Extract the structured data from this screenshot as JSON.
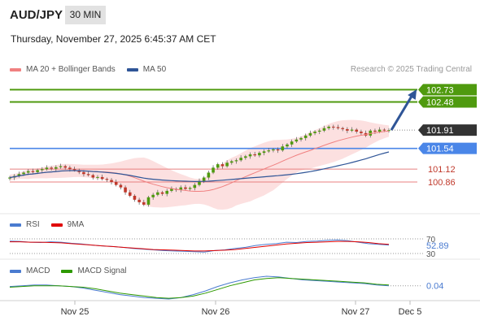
{
  "header": {
    "symbol": "AUD/JPY",
    "timeframe": "30 MIN",
    "datetime": "Thursday, November 27, 2025 6:45:37 AM CET",
    "credit": "Research © 2025 Trading Central"
  },
  "legends": {
    "main": [
      {
        "label": "MA 20 + Bollinger Bands",
        "color": "#f08080"
      },
      {
        "label": "MA 50",
        "color": "#2f5597"
      }
    ],
    "rsi": [
      {
        "label": "RSI",
        "color": "#4a7bd0"
      },
      {
        "label": "9MA",
        "color": "#e00000"
      }
    ],
    "macd": [
      {
        "label": "MACD",
        "color": "#4a7bd0"
      },
      {
        "label": "MACD Signal",
        "color": "#2e9900"
      }
    ]
  },
  "colors": {
    "resistance": "#4f9a0f",
    "current": "#333333",
    "pivot": "#4a86e8",
    "support": "#e88080",
    "arrow": "#2f5597",
    "candle_up": "#4f9a0f",
    "candle_down": "#c0392b",
    "band_fill": "#fbd5d5"
  },
  "chart_data": [
    {
      "type": "candlestick",
      "title": "AUD/JPY",
      "x_ticks": [
        "Nov 25",
        "Nov 26",
        "Nov 27",
        "Dec 5"
      ],
      "ylim": [
        100.3,
        102.95
      ],
      "close": [
        100.95,
        100.98,
        101.02,
        101.05,
        101.08,
        101.06,
        101.1,
        101.12,
        101.15,
        101.13,
        101.16,
        101.18,
        101.15,
        101.12,
        101.1,
        101.06,
        101.02,
        101.0,
        100.95,
        100.96,
        100.92,
        100.9,
        100.86,
        100.8,
        100.75,
        100.65,
        100.58,
        100.5,
        100.45,
        100.4,
        100.55,
        100.6,
        100.65,
        100.62,
        100.68,
        100.72,
        100.7,
        100.75,
        100.72,
        100.74,
        100.8,
        100.88,
        100.95,
        101.05,
        101.15,
        101.22,
        101.18,
        101.25,
        101.28,
        101.3,
        101.35,
        101.38,
        101.42,
        101.4,
        101.45,
        101.48,
        101.5,
        101.52,
        101.5,
        101.58,
        101.62,
        101.68,
        101.72,
        101.75,
        101.8,
        101.85,
        101.88,
        101.9,
        101.95,
        101.98,
        101.97,
        101.95,
        101.93,
        101.9,
        101.92,
        101.88,
        101.85,
        101.8,
        101.9,
        101.88,
        101.92,
        101.91,
        101.91
      ],
      "support_levels": [
        {
          "label": "101.54",
          "value": 101.54,
          "kind": "pivot"
        },
        {
          "label": "101.12",
          "value": 101.12,
          "kind": "support"
        },
        {
          "label": "100.86",
          "value": 100.86,
          "kind": "support"
        }
      ],
      "resistance_levels": [
        {
          "label": "102.73",
          "value": 102.73
        },
        {
          "label": "102.48",
          "value": 102.48
        }
      ],
      "current_price": {
        "label": "101.91",
        "value": 101.91
      },
      "forecast_arrow": {
        "from": 101.91,
        "to": 102.73
      }
    },
    {
      "type": "line",
      "title": "RSI",
      "ylim": [
        30,
        70
      ],
      "ticks": [
        "70",
        "30"
      ],
      "current_label": "52.89",
      "series": [
        {
          "name": "RSI",
          "values": [
            64,
            63,
            61,
            60,
            62,
            61,
            58,
            56,
            53,
            51,
            49,
            47,
            44,
            42,
            40,
            38,
            37,
            36,
            35,
            34,
            38,
            40,
            44,
            47,
            52,
            55,
            57,
            61,
            60,
            63,
            64,
            66,
            67,
            65,
            61,
            57,
            55,
            53
          ]
        },
        {
          "name": "9MA",
          "values": [
            62,
            62,
            61,
            61,
            60,
            59,
            57,
            55,
            53,
            51,
            49,
            47,
            45,
            43,
            41,
            40,
            39,
            38,
            37,
            37,
            38,
            39,
            41,
            44,
            47,
            50,
            53,
            56,
            58,
            60,
            61,
            62,
            63,
            63,
            62,
            60,
            57,
            55
          ]
        }
      ]
    },
    {
      "type": "line",
      "title": "MACD",
      "current_label": "0.04",
      "series": [
        {
          "name": "MACD",
          "values": [
            0.03,
            0.04,
            0.05,
            0.05,
            0.04,
            0.03,
            0.01,
            -0.02,
            -0.05,
            -0.08,
            -0.1,
            -0.12,
            -0.13,
            -0.14,
            -0.12,
            -0.08,
            -0.03,
            0.03,
            0.08,
            0.12,
            0.15,
            0.17,
            0.16,
            0.14,
            0.12,
            0.11,
            0.1,
            0.09,
            0.08,
            0.07,
            0.05,
            0.04
          ]
        },
        {
          "name": "MACD Signal",
          "values": [
            0.02,
            0.03,
            0.04,
            0.04,
            0.04,
            0.03,
            0.02,
            0.0,
            -0.03,
            -0.06,
            -0.08,
            -0.1,
            -0.12,
            -0.13,
            -0.12,
            -0.1,
            -0.06,
            -0.01,
            0.04,
            0.08,
            0.12,
            0.14,
            0.15,
            0.14,
            0.13,
            0.12,
            0.11,
            0.1,
            0.09,
            0.08,
            0.06,
            0.05
          ]
        }
      ]
    }
  ]
}
